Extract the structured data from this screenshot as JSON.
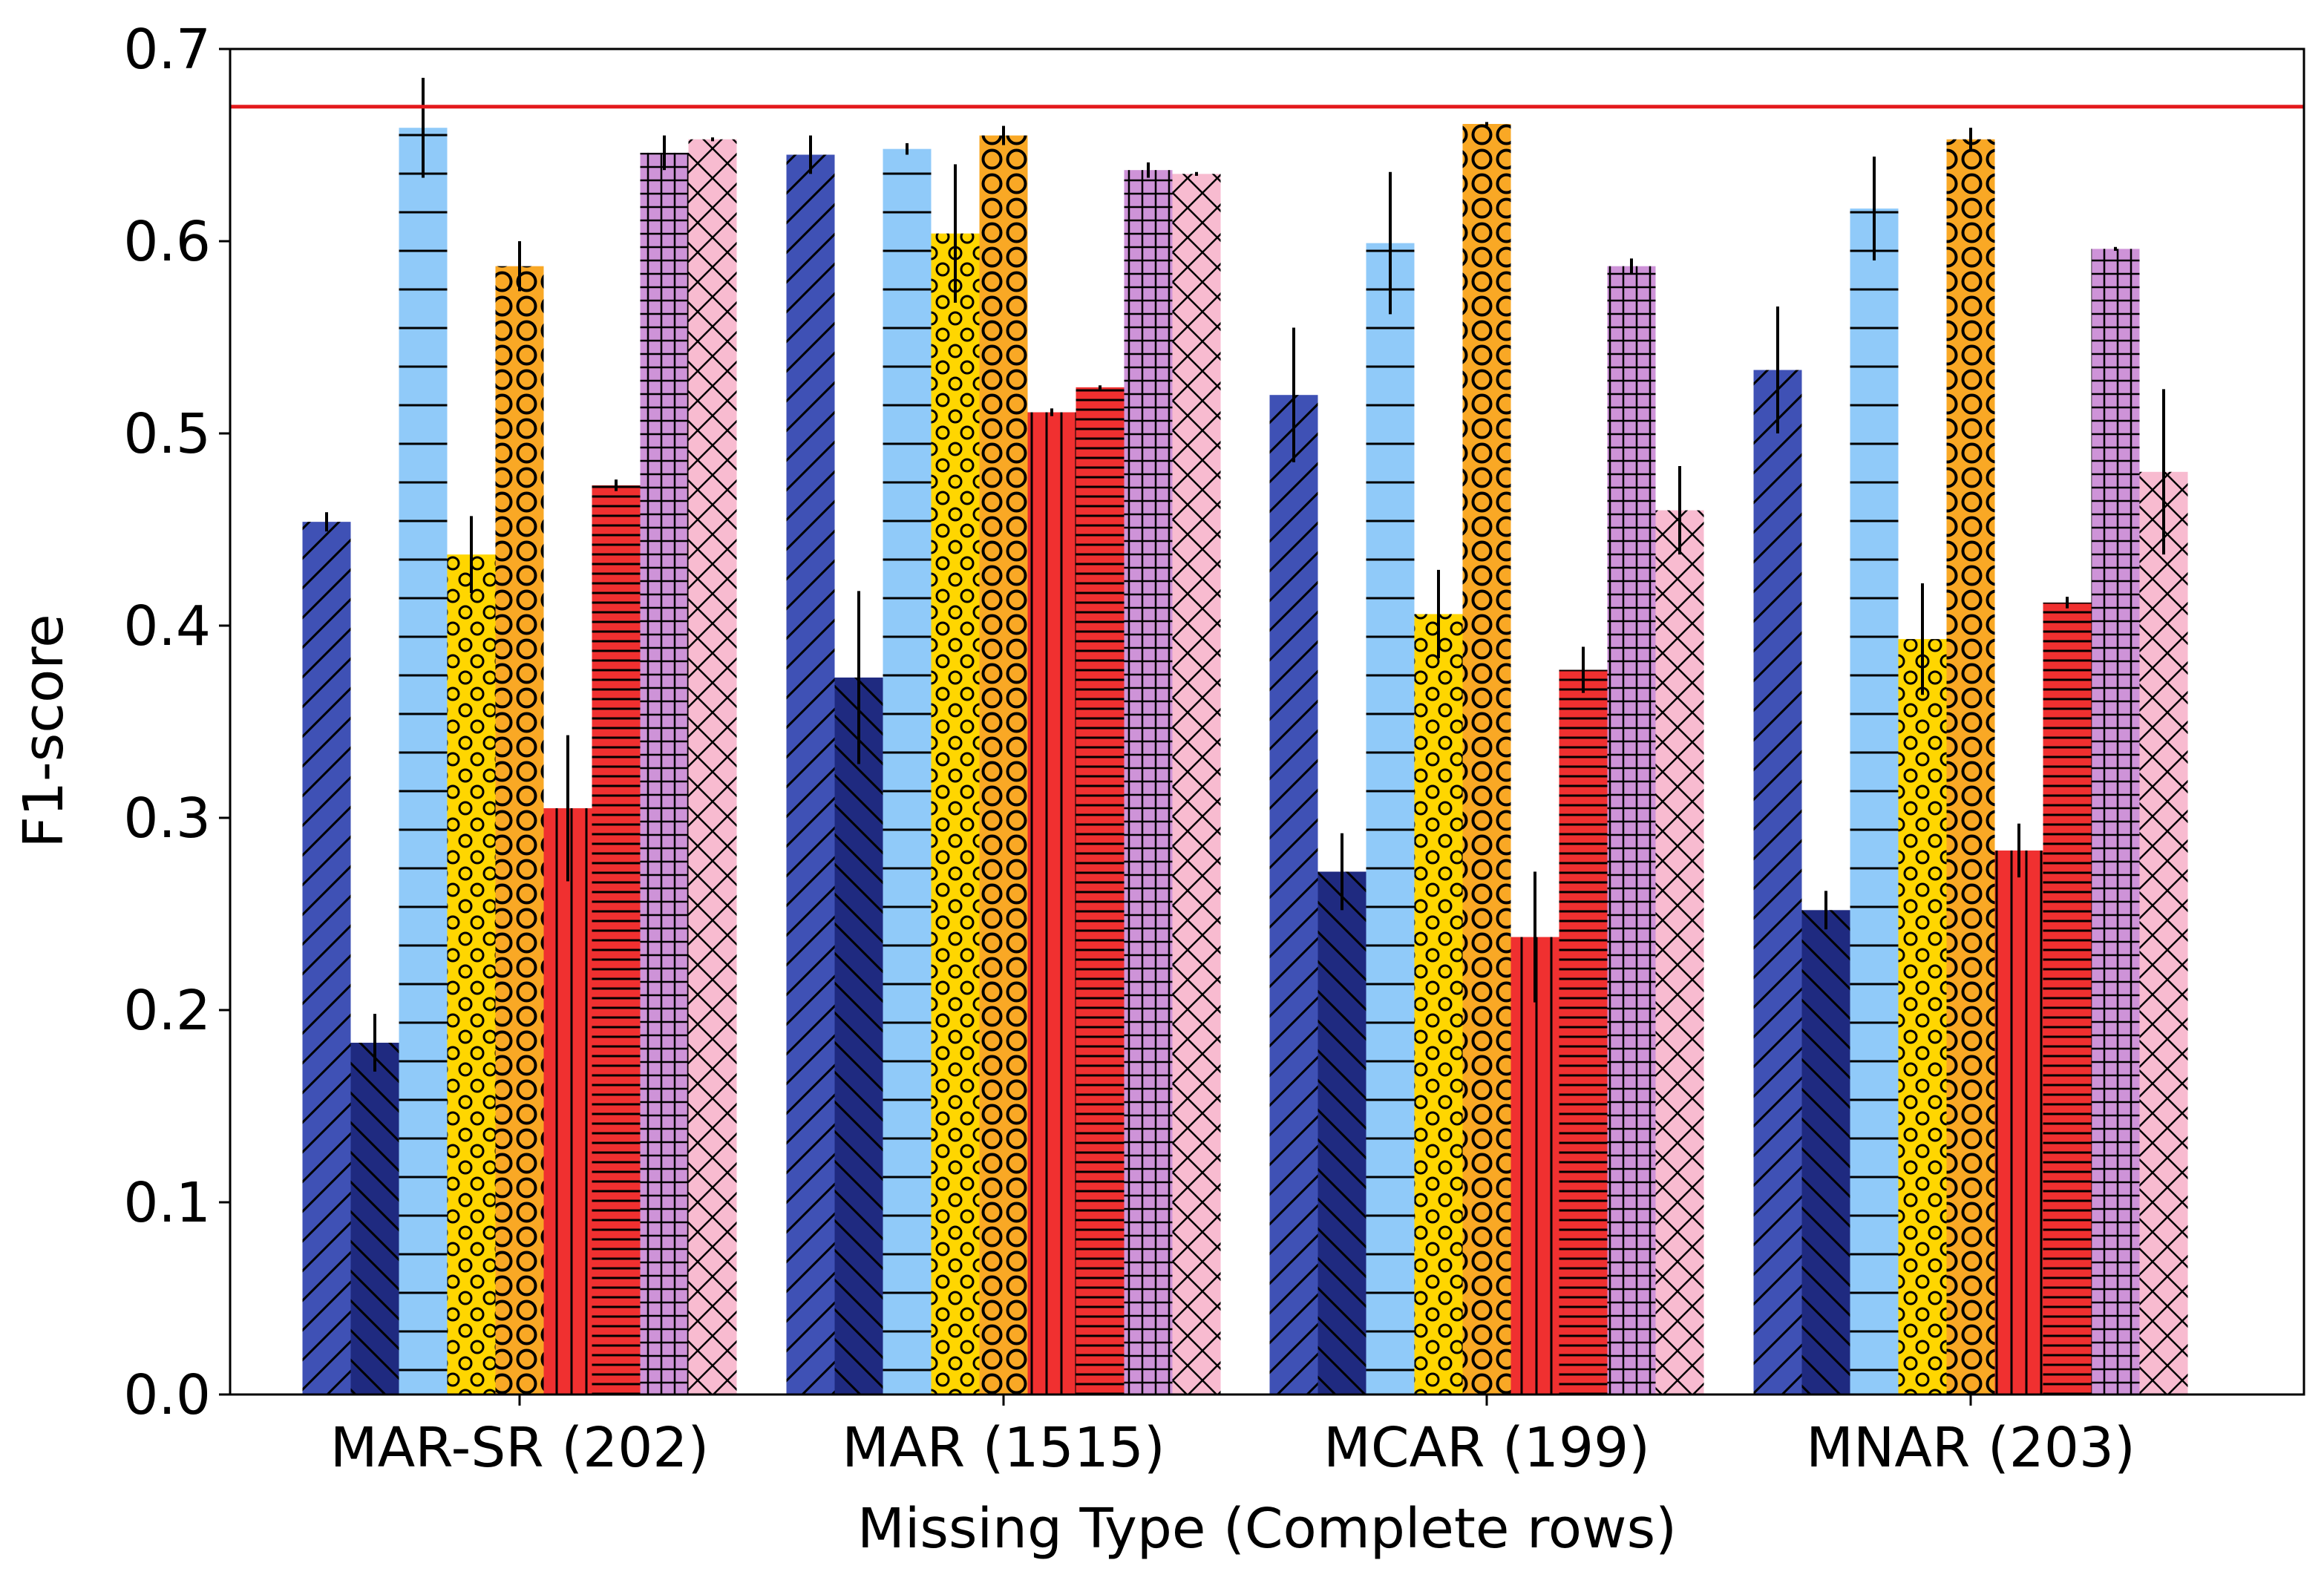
{
  "chart_data": {
    "type": "bar",
    "xlabel": "Missing Type (Complete rows)",
    "ylabel": "F1-score",
    "ylim": [
      0,
      0.7
    ],
    "yticks": [
      "0.0",
      "0.1",
      "0.2",
      "0.3",
      "0.4",
      "0.5",
      "0.6",
      "0.7"
    ],
    "grid": false,
    "categories": [
      "MAR-SR (202)",
      "MAR (1515)",
      "MCAR (199)",
      "MNAR (203)"
    ],
    "reference_line": {
      "value": 0.67,
      "color": "#e31a1c"
    },
    "series": [
      {
        "color": "#3f51b5",
        "pattern": "diag-up",
        "values": [
          0.454,
          0.645,
          0.52,
          0.533
        ],
        "errors": [
          0.005,
          0.01,
          0.035,
          0.033
        ]
      },
      {
        "color": "#1f2a80",
        "pattern": "diag-down",
        "values": [
          0.183,
          0.373,
          0.272,
          0.252
        ],
        "errors": [
          0.015,
          0.045,
          0.02,
          0.01
        ]
      },
      {
        "color": "#90caf9",
        "pattern": "hlines",
        "values": [
          0.659,
          0.648,
          0.599,
          0.617
        ],
        "errors": [
          0.026,
          0.003,
          0.037,
          0.027
        ]
      },
      {
        "color": "#ffd600",
        "pattern": "small-circles",
        "values": [
          0.437,
          0.604,
          0.406,
          0.393
        ],
        "errors": [
          0.02,
          0.036,
          0.023,
          0.029
        ]
      },
      {
        "color": "#f9a825",
        "pattern": "big-circles",
        "values": [
          0.587,
          0.655,
          0.661,
          0.653
        ],
        "errors": [
          0.013,
          0.005,
          0.001,
          0.006
        ]
      },
      {
        "color": "#f03030",
        "pattern": "vlines",
        "values": [
          0.305,
          0.511,
          0.238,
          0.283
        ],
        "errors": [
          0.038,
          0.002,
          0.034,
          0.014
        ]
      },
      {
        "color": "#f03030",
        "pattern": "dense-hlines",
        "values": [
          0.473,
          0.524,
          0.377,
          0.412
        ],
        "errors": [
          0.003,
          0.001,
          0.012,
          0.003
        ]
      },
      {
        "color": "#ce93d8",
        "pattern": "grid",
        "values": [
          0.646,
          0.637,
          0.587,
          0.596
        ],
        "errors": [
          0.009,
          0.004,
          0.004,
          0.001
        ]
      },
      {
        "color": "#f8bbd0",
        "pattern": "crosshatch",
        "values": [
          0.653,
          0.635,
          0.46,
          0.48
        ],
        "errors": [
          0.001,
          0.001,
          0.023,
          0.043
        ]
      }
    ]
  }
}
